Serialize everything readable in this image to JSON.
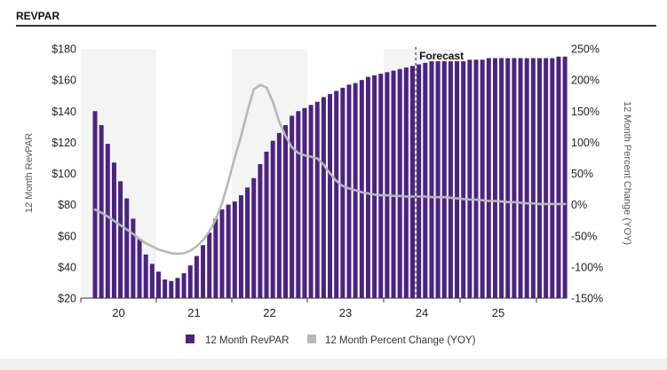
{
  "header": {
    "title": "REVPAR"
  },
  "chart_data": {
    "type": "bar+line",
    "title": "",
    "xlabel": "",
    "ylabel_left": "12 Month RevPAR",
    "ylabel_right": "12 Month Percent Change (YOY)",
    "y_left_ticks": [
      "$180",
      "$160",
      "$140",
      "$120",
      "$100",
      "$80",
      "$60",
      "$40",
      "$20"
    ],
    "y_right_ticks": [
      "250%",
      "200%",
      "150%",
      "100%",
      "50%",
      "0%",
      "-50%",
      "-100%",
      "-150%"
    ],
    "ylim_left": [
      20,
      180
    ],
    "ylim_right": [
      -150,
      250
    ],
    "x_ticks": [
      "20",
      "21",
      "22",
      "23",
      "24",
      "25"
    ],
    "annotations": [
      {
        "text": "Forecast",
        "at_index": 51
      }
    ],
    "series": [
      {
        "name": "12 Month RevPAR",
        "type": "bar",
        "color": "#4b2382",
        "values": [
          140,
          131,
          119,
          107,
          95,
          84,
          71,
          58,
          48,
          42,
          37,
          32,
          31,
          33,
          36,
          41,
          47,
          54,
          62,
          71,
          77,
          80,
          82,
          86,
          91,
          97,
          106,
          114,
          121,
          126,
          131,
          137,
          140,
          142,
          144,
          146,
          149,
          151,
          153,
          155,
          157,
          158,
          160,
          162,
          163,
          164,
          165,
          166,
          167,
          168,
          169,
          170,
          171,
          172,
          172,
          172,
          172,
          172,
          172,
          173,
          173,
          173,
          174,
          174,
          174,
          174,
          174,
          174,
          174,
          174,
          174,
          174,
          174,
          175,
          175
        ]
      },
      {
        "name": "12 Month Percent Change (YOY)",
        "type": "line",
        "color": "#b8b8b8",
        "values": [
          -8,
          -13,
          -19,
          -26,
          -33,
          -40,
          -47,
          -55,
          -62,
          -67,
          -72,
          -75,
          -78,
          -79,
          -78,
          -74,
          -67,
          -57,
          -43,
          -24,
          2,
          37,
          75,
          110,
          150,
          185,
          192,
          188,
          165,
          133,
          110,
          92,
          83,
          79,
          77,
          74,
          64,
          50,
          38,
          30,
          26,
          23,
          20,
          18,
          16,
          15,
          15,
          14,
          14,
          13,
          13,
          13,
          13,
          12,
          12,
          12,
          11,
          10,
          9,
          8,
          8,
          7,
          6,
          6,
          5,
          4,
          4,
          3,
          2,
          2,
          1,
          1,
          1,
          1,
          1
        ]
      }
    ]
  },
  "colors": {
    "bar": "#4b2382",
    "line": "#b8b8b8",
    "band": "#f4f4f4"
  },
  "legend": {
    "items": [
      "12 Month RevPAR",
      "12 Month Percent Change (YOY)"
    ]
  }
}
